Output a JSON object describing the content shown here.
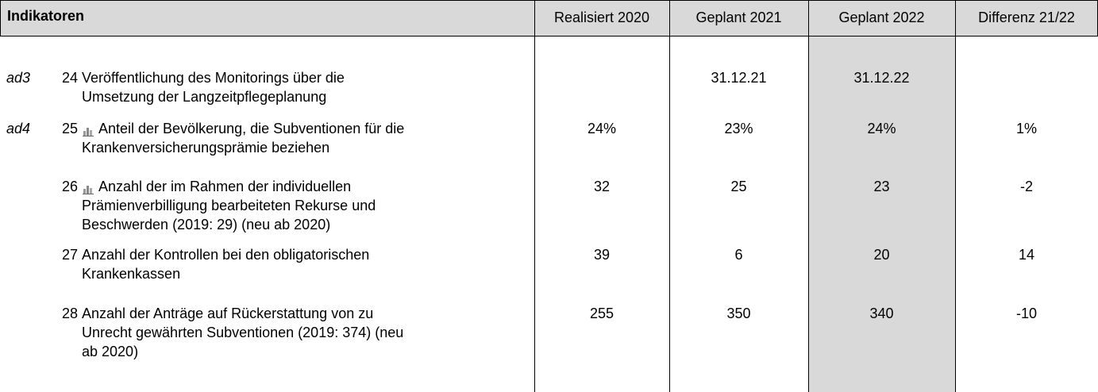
{
  "header": {
    "title": "Indikatoren",
    "columns": [
      "Realisiert 2020",
      "Geplant 2021",
      "Geplant 2022",
      "Differenz 21/22"
    ]
  },
  "table": {
    "rows": [
      {
        "group": "ad3",
        "number": "24",
        "chart_icon": false,
        "lines": [
          "Veröffentlichung des Monitorings über die",
          "Umsetzung der Langzeitpflegeplanung"
        ],
        "values": [
          null,
          "31.12.21",
          "31.12.22",
          null
        ]
      },
      {
        "group": "ad4",
        "number": "25",
        "chart_icon": true,
        "lines": [
          "Anteil der Bevölkerung, die Subventionen für die",
          "Krankenversicherungsprämie beziehen"
        ],
        "values": [
          "24%",
          "23%",
          "24%",
          "1%"
        ]
      },
      {
        "group": null,
        "number": "26",
        "chart_icon": true,
        "lines": [
          "Anzahl der im Rahmen der individuellen",
          "Prämienverbilligung bearbeiteten Rekurse und",
          "Beschwerden (2019: 29) (neu ab 2020)"
        ],
        "values": [
          "32",
          "25",
          "23",
          "-2"
        ]
      },
      {
        "group": null,
        "number": "27",
        "chart_icon": false,
        "lines": [
          "Anzahl der Kontrollen bei den obligatorischen",
          "Krankenkassen"
        ],
        "values": [
          "39",
          "6",
          "20",
          "14"
        ]
      },
      {
        "group": null,
        "number": "28",
        "chart_icon": false,
        "lines": [
          "Anzahl der Anträge auf Rückerstattung von zu",
          "Unrecht gewährten Subventionen (2019: 374) (neu",
          "ab 2020)"
        ],
        "values": [
          "255",
          "350",
          "340",
          "-10"
        ]
      }
    ]
  }
}
